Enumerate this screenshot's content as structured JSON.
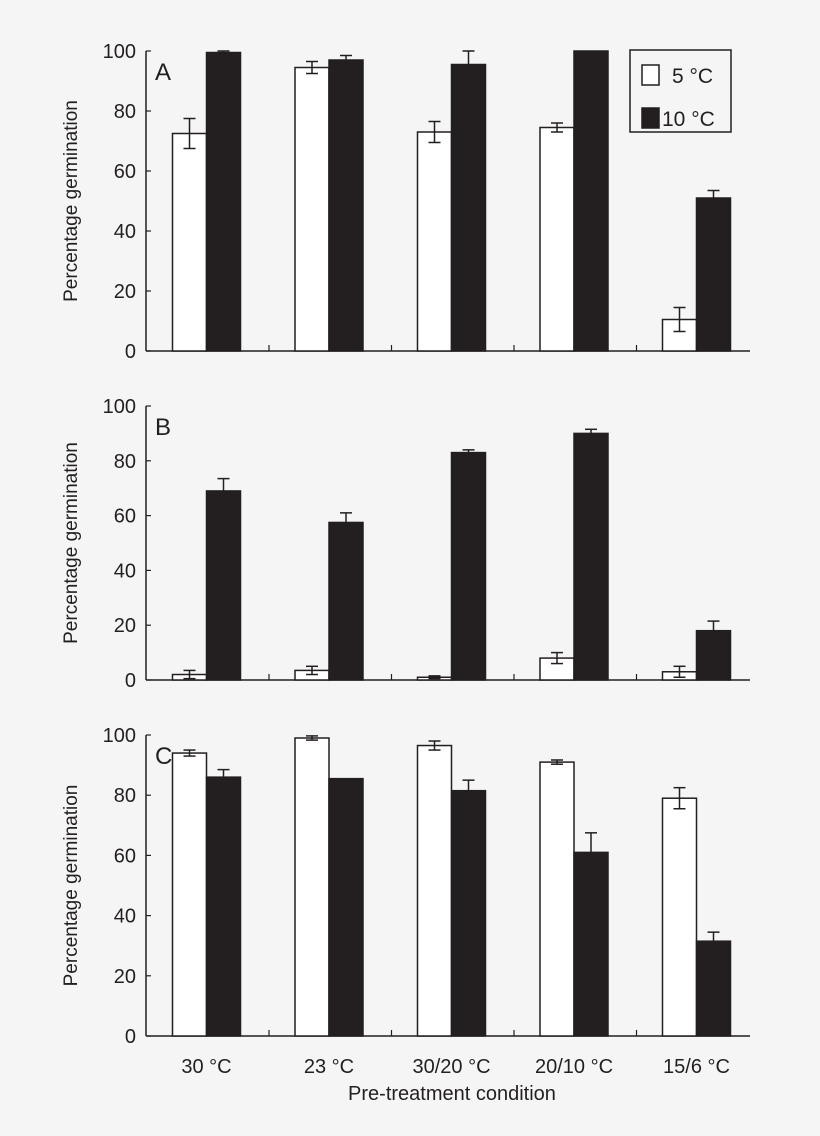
{
  "chart_data": [
    {
      "type": "bar",
      "panel_label": "A",
      "categories": [
        "30 °C",
        "23 °C",
        "30/20 °C",
        "20/10 °C",
        "15/6 °C"
      ],
      "ylabel": "Percentage germination",
      "ylim": [
        0,
        100
      ],
      "yticks": [
        0,
        20,
        40,
        60,
        80,
        100
      ],
      "series": [
        {
          "name": "5 °C",
          "color": "#ffffff",
          "values": [
            72.5,
            94.5,
            73,
            74.5,
            10.5
          ],
          "errors": [
            5,
            2,
            3.5,
            1.5,
            4
          ]
        },
        {
          "name": "10 °C",
          "color": "#231f20",
          "values": [
            99.5,
            97,
            95.5,
            100,
            51
          ],
          "errors": [
            0.5,
            1.5,
            4.5,
            0,
            2.5
          ]
        }
      ],
      "legend": "top-right"
    },
    {
      "type": "bar",
      "panel_label": "B",
      "categories": [
        "30 °C",
        "23 °C",
        "30/20 °C",
        "20/10 °C",
        "15/6 °C"
      ],
      "ylabel": "Percentage germination",
      "ylim": [
        0,
        100
      ],
      "yticks": [
        0,
        20,
        40,
        60,
        80,
        100
      ],
      "series": [
        {
          "name": "5 °C",
          "color": "#ffffff",
          "values": [
            2,
            3.5,
            1,
            8,
            3
          ],
          "errors": [
            1.5,
            1.5,
            0.5,
            2,
            2
          ]
        },
        {
          "name": "10 °C",
          "color": "#231f20",
          "values": [
            69,
            57.5,
            83,
            90,
            18
          ],
          "errors": [
            4.5,
            3.5,
            1,
            1.5,
            3.5
          ]
        }
      ]
    },
    {
      "type": "bar",
      "panel_label": "C",
      "categories": [
        "30 °C",
        "23 °C",
        "30/20 °C",
        "20/10 °C",
        "15/6 °C"
      ],
      "xlabel": "Pre-treatment condition",
      "ylabel": "Percentage germination",
      "ylim": [
        0,
        100
      ],
      "yticks": [
        0,
        20,
        40,
        60,
        80,
        100
      ],
      "series": [
        {
          "name": "5 °C",
          "color": "#ffffff",
          "values": [
            94,
            99,
            96.5,
            91,
            79
          ],
          "errors": [
            1,
            0.7,
            1.5,
            0.7,
            3.5
          ]
        },
        {
          "name": "10 °C",
          "color": "#231f20",
          "values": [
            86,
            85.5,
            81.5,
            61,
            31.5
          ],
          "errors": [
            2.5,
            0,
            3.5,
            6.5,
            3
          ]
        }
      ]
    }
  ]
}
